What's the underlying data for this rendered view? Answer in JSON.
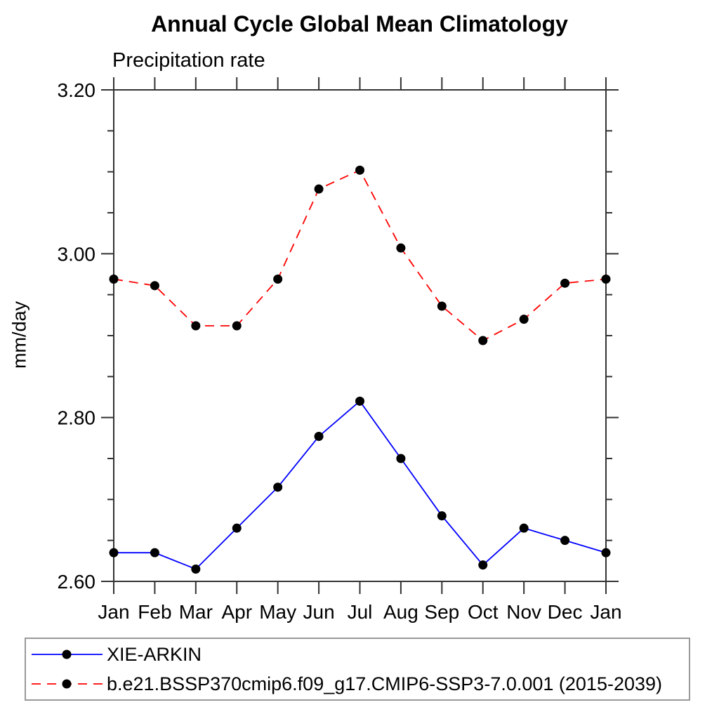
{
  "chart_data": {
    "type": "line",
    "title": "Annual Cycle Global Mean Climatology",
    "subtitle": "Precipitation rate",
    "ylabel": "mm/day",
    "xlabel": "",
    "categories": [
      "Jan",
      "Feb",
      "Mar",
      "Apr",
      "May",
      "Jun",
      "Jul",
      "Aug",
      "Sep",
      "Oct",
      "Nov",
      "Dec",
      "Jan"
    ],
    "series": [
      {
        "name": "XIE-ARKIN",
        "color": "#0000ff",
        "line_style": "solid",
        "marker": "filled-circle",
        "marker_color": "#000000",
        "values": [
          2.635,
          2.635,
          2.615,
          2.665,
          2.715,
          2.777,
          2.82,
          2.75,
          2.68,
          2.62,
          2.665,
          2.65,
          2.635
        ]
      },
      {
        "name": "b.e21.BSSP370cmip6.f09_g17.CMIP6-SSP3-7.0.001 (2015-2039)",
        "color": "#ff0000",
        "line_style": "dashed",
        "marker": "filled-circle",
        "marker_color": "#000000",
        "values": [
          2.969,
          2.961,
          2.912,
          2.912,
          2.969,
          3.079,
          3.102,
          3.007,
          2.936,
          2.894,
          2.92,
          2.964,
          2.969
        ]
      }
    ],
    "ylim": [
      2.6,
      3.2
    ],
    "y_major_ticks": [
      {
        "value": 2.6,
        "label": "2.60"
      },
      {
        "value": 2.8,
        "label": "2.80"
      },
      {
        "value": 3.0,
        "label": "3.00"
      },
      {
        "value": 3.2,
        "label": "3.20"
      }
    ],
    "y_minor_step": 0.05,
    "grid": "off",
    "legend_position": "bottom",
    "colors": {
      "axis": "#333333",
      "text": "#000000",
      "legend_border": "#999999",
      "background": "#ffffff"
    }
  }
}
